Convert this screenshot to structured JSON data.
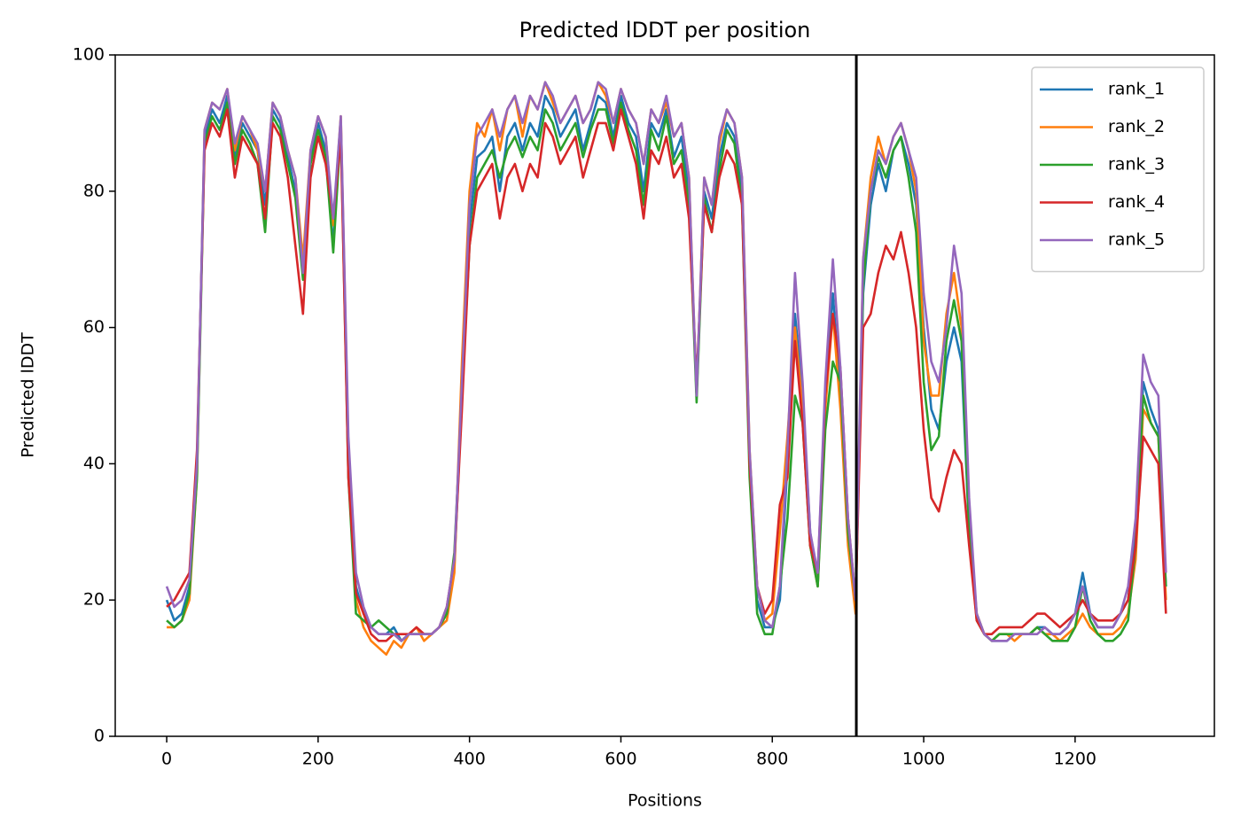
{
  "chart_data": {
    "type": "line",
    "title": "Predicted lDDT per position",
    "xlabel": "Positions",
    "ylabel": "Predicted lDDT",
    "xlim": [
      -68,
      1384
    ],
    "ylim": [
      0,
      100
    ],
    "xticks": [
      0,
      200,
      400,
      600,
      800,
      1000,
      1200
    ],
    "yticks": [
      0,
      20,
      40,
      60,
      80,
      100
    ],
    "grid": false,
    "legend": "upper right",
    "vlines": [
      911
    ],
    "vline_color": "#000000",
    "x": [
      0,
      10,
      20,
      30,
      40,
      50,
      60,
      70,
      80,
      90,
      100,
      110,
      120,
      130,
      140,
      150,
      160,
      170,
      180,
      190,
      200,
      210,
      220,
      230,
      240,
      250,
      260,
      270,
      280,
      290,
      300,
      310,
      320,
      330,
      340,
      350,
      360,
      370,
      380,
      390,
      400,
      410,
      420,
      430,
      440,
      450,
      460,
      470,
      480,
      490,
      500,
      510,
      520,
      530,
      540,
      550,
      560,
      570,
      580,
      590,
      600,
      610,
      620,
      630,
      640,
      650,
      660,
      670,
      680,
      690,
      700,
      710,
      720,
      730,
      740,
      750,
      760,
      770,
      780,
      790,
      800,
      810,
      820,
      830,
      840,
      850,
      860,
      870,
      880,
      890,
      900,
      910,
      920,
      930,
      940,
      950,
      960,
      970,
      980,
      990,
      1000,
      1010,
      1020,
      1030,
      1040,
      1050,
      1060,
      1070,
      1080,
      1090,
      1100,
      1110,
      1120,
      1130,
      1140,
      1150,
      1160,
      1170,
      1180,
      1190,
      1200,
      1210,
      1220,
      1230,
      1240,
      1250,
      1260,
      1270,
      1280,
      1290,
      1300,
      1310,
      1320
    ],
    "series": [
      {
        "name": "rank_1",
        "color": "#1f77b4",
        "values": [
          20,
          17,
          18,
          22,
          40,
          88,
          92,
          90,
          94,
          85,
          90,
          88,
          86,
          78,
          92,
          90,
          85,
          80,
          68,
          85,
          90,
          86,
          72,
          90,
          40,
          22,
          18,
          16,
          15,
          15,
          16,
          14,
          15,
          15,
          15,
          15,
          16,
          18,
          25,
          50,
          75,
          85,
          86,
          88,
          80,
          88,
          90,
          86,
          90,
          88,
          94,
          92,
          88,
          90,
          92,
          86,
          90,
          94,
          93,
          88,
          94,
          90,
          88,
          80,
          90,
          88,
          92,
          85,
          88,
          80,
          50,
          80,
          76,
          85,
          90,
          88,
          80,
          40,
          20,
          16,
          16,
          20,
          40,
          62,
          50,
          30,
          22,
          50,
          65,
          50,
          30,
          20,
          65,
          78,
          84,
          80,
          86,
          88,
          84,
          78,
          60,
          48,
          45,
          55,
          60,
          55,
          30,
          18,
          15,
          14,
          14,
          14,
          15,
          15,
          15,
          16,
          16,
          15,
          15,
          16,
          18,
          24,
          18,
          16,
          16,
          16,
          18,
          20,
          30,
          52,
          48,
          45,
          22
        ]
      },
      {
        "name": "rank_2",
        "color": "#ff7f0e",
        "values": [
          16,
          16,
          17,
          20,
          38,
          89,
          93,
          92,
          95,
          86,
          91,
          89,
          86,
          80,
          93,
          91,
          86,
          82,
          70,
          86,
          91,
          88,
          75,
          91,
          42,
          20,
          16,
          14,
          13,
          12,
          14,
          13,
          15,
          16,
          14,
          15,
          16,
          17,
          24,
          55,
          80,
          90,
          88,
          92,
          86,
          92,
          94,
          88,
          94,
          92,
          96,
          93,
          90,
          92,
          94,
          90,
          92,
          96,
          94,
          90,
          95,
          92,
          90,
          84,
          92,
          90,
          93,
          88,
          90,
          82,
          50,
          82,
          78,
          87,
          92,
          90,
          82,
          42,
          22,
          17,
          18,
          30,
          44,
          60,
          48,
          28,
          22,
          48,
          62,
          48,
          28,
          18,
          70,
          82,
          88,
          84,
          88,
          90,
          86,
          80,
          58,
          50,
          50,
          62,
          68,
          60,
          32,
          18,
          15,
          14,
          15,
          15,
          14,
          15,
          15,
          16,
          15,
          15,
          14,
          15,
          16,
          18,
          16,
          15,
          15,
          15,
          16,
          18,
          26,
          48,
          46,
          44,
          20
        ]
      },
      {
        "name": "rank_3",
        "color": "#2ca02c",
        "values": [
          17,
          16,
          17,
          21,
          38,
          87,
          91,
          89,
          93,
          84,
          89,
          87,
          84,
          74,
          91,
          89,
          84,
          79,
          67,
          84,
          89,
          85,
          71,
          89,
          38,
          18,
          17,
          16,
          17,
          16,
          15,
          14,
          15,
          15,
          15,
          15,
          16,
          18,
          27,
          50,
          72,
          82,
          84,
          86,
          82,
          86,
          88,
          85,
          88,
          86,
          92,
          90,
          86,
          88,
          90,
          85,
          89,
          92,
          92,
          87,
          93,
          89,
          86,
          78,
          89,
          86,
          91,
          84,
          86,
          78,
          49,
          79,
          74,
          83,
          89,
          87,
          78,
          38,
          18,
          15,
          15,
          22,
          32,
          50,
          46,
          28,
          22,
          45,
          55,
          52,
          30,
          20,
          66,
          80,
          85,
          82,
          86,
          88,
          82,
          74,
          52,
          42,
          44,
          58,
          64,
          58,
          30,
          17,
          15,
          14,
          15,
          15,
          15,
          15,
          15,
          16,
          15,
          14,
          14,
          14,
          16,
          22,
          17,
          15,
          14,
          14,
          15,
          17,
          28,
          50,
          46,
          44,
          22
        ]
      },
      {
        "name": "rank_4",
        "color": "#d62728",
        "values": [
          19,
          20,
          22,
          24,
          42,
          86,
          90,
          88,
          92,
          82,
          88,
          86,
          84,
          76,
          90,
          88,
          82,
          72,
          62,
          82,
          88,
          84,
          76,
          88,
          38,
          21,
          18,
          15,
          14,
          14,
          15,
          15,
          15,
          16,
          15,
          15,
          16,
          19,
          26,
          48,
          72,
          80,
          82,
          84,
          76,
          82,
          84,
          80,
          84,
          82,
          90,
          88,
          84,
          86,
          88,
          82,
          86,
          90,
          90,
          86,
          92,
          88,
          84,
          76,
          86,
          84,
          88,
          82,
          84,
          76,
          52,
          78,
          74,
          82,
          86,
          84,
          78,
          40,
          22,
          18,
          20,
          34,
          38,
          58,
          46,
          28,
          24,
          50,
          62,
          54,
          32,
          20,
          60,
          62,
          68,
          72,
          70,
          74,
          68,
          60,
          45,
          35,
          33,
          38,
          42,
          40,
          28,
          17,
          15,
          15,
          16,
          16,
          16,
          16,
          17,
          18,
          18,
          17,
          16,
          17,
          18,
          20,
          18,
          17,
          17,
          17,
          18,
          20,
          28,
          44,
          42,
          40,
          18
        ]
      },
      {
        "name": "rank_5",
        "color": "#9467bd",
        "values": [
          22,
          19,
          20,
          23,
          40,
          89,
          93,
          92,
          95,
          87,
          91,
          89,
          87,
          80,
          93,
          91,
          86,
          82,
          68,
          86,
          91,
          88,
          76,
          91,
          44,
          24,
          19,
          16,
          15,
          15,
          15,
          14,
          15,
          15,
          15,
          15,
          16,
          19,
          26,
          52,
          78,
          88,
          90,
          92,
          88,
          92,
          94,
          90,
          94,
          92,
          96,
          94,
          90,
          92,
          94,
          90,
          92,
          96,
          95,
          90,
          95,
          92,
          90,
          84,
          92,
          90,
          94,
          88,
          90,
          82,
          50,
          82,
          78,
          88,
          92,
          90,
          82,
          42,
          22,
          17,
          16,
          22,
          42,
          68,
          52,
          30,
          24,
          52,
          70,
          54,
          32,
          20,
          70,
          80,
          86,
          84,
          88,
          90,
          86,
          82,
          65,
          55,
          52,
          60,
          72,
          65,
          35,
          18,
          15,
          14,
          14,
          14,
          15,
          15,
          15,
          15,
          16,
          15,
          15,
          16,
          18,
          22,
          18,
          16,
          16,
          16,
          18,
          22,
          32,
          56,
          52,
          50,
          24
        ]
      }
    ]
  }
}
